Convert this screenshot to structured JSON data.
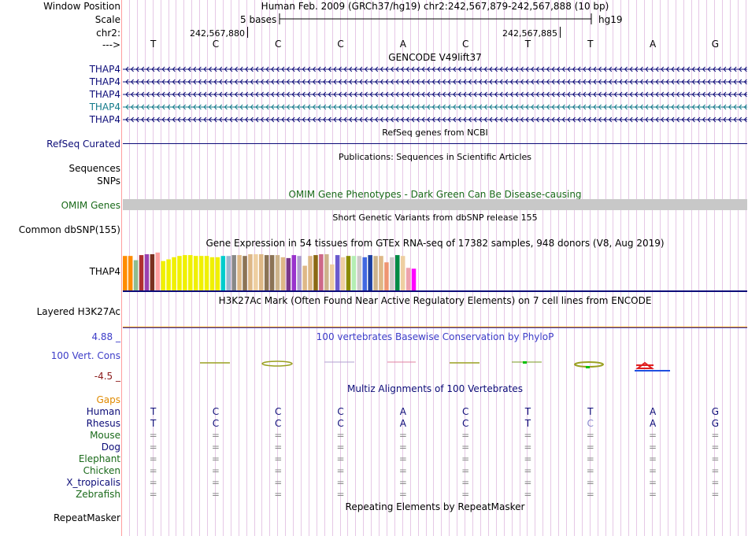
{
  "ruler": {
    "window_position_label": "Window Position",
    "scale_label": "Scale",
    "chr_label": "chr2:",
    "strand_label": "--->",
    "window_text": "Human Feb. 2009 (GRCh37/hg19)   chr2:242,567,879-242,567,888 (10 bp)",
    "scale_text": "5 bases",
    "assembly": "hg19",
    "pos_left": "242,567,880",
    "pos_right": "242,567,885",
    "bases": [
      "T",
      "C",
      "C",
      "C",
      "A",
      "C",
      "T",
      "T",
      "A",
      "G"
    ]
  },
  "gencode": {
    "title": "GENCODE V49lift37",
    "transcripts": [
      "THAP4",
      "THAP4",
      "THAP4",
      "THAP4",
      "THAP4"
    ],
    "colors": [
      "#0c0c78",
      "#0c0c78",
      "#0c0c78",
      "#127a8a",
      "#0c0c78"
    ]
  },
  "refseq": {
    "title": "RefSeq genes from NCBI",
    "label": "RefSeq Curated"
  },
  "publications": {
    "title": "Publications: Sequences in Scientific Articles"
  },
  "sequences": {
    "label": "Sequences"
  },
  "snps": {
    "label": "SNPs"
  },
  "omim": {
    "title": "OMIM Gene Phenotypes - Dark Green Can Be Disease-causing",
    "label": "OMIM Genes"
  },
  "dbsnp": {
    "title": "Short Genetic Variants from dbSNP release 155",
    "label": "Common dbSNP(155)"
  },
  "gtex": {
    "title": "Gene Expression in 54 tissues from GTEx RNA-seq of 17382 samples, 948 donors (V8, Aug 2019)",
    "gene": "THAP4",
    "levels": [
      0.83,
      0.83,
      0.73,
      0.85,
      0.87,
      0.87,
      0.91,
      0.71,
      0.75,
      0.8,
      0.83,
      0.85,
      0.85,
      0.83,
      0.83,
      0.83,
      0.8,
      0.8,
      0.83,
      0.83,
      0.85,
      0.85,
      0.83,
      0.87,
      0.87,
      0.87,
      0.85,
      0.85,
      0.85,
      0.8,
      0.78,
      0.85,
      0.83,
      0.6,
      0.83,
      0.85,
      0.87,
      0.87,
      0.63,
      0.85,
      0.8,
      0.83,
      0.83,
      0.83,
      0.8,
      0.85,
      0.83,
      0.83,
      0.68,
      0.8,
      0.85,
      0.83,
      0.55,
      0.53
    ],
    "colors": [
      "#ff8c00",
      "#ff8c00",
      "#8fbc8f",
      "#b03030",
      "#9a40b0",
      "#7a3020",
      "#ffa0a0",
      "#f0f000",
      "#f0f000",
      "#f0f000",
      "#f0f000",
      "#f0f000",
      "#f0f000",
      "#f0f000",
      "#f0f000",
      "#f0f000",
      "#f0f000",
      "#f0f000",
      "#00cccc",
      "#9fb6cd",
      "#888888",
      "#deb887",
      "#8b7355",
      "#deb887",
      "#eecfa1",
      "#deb887",
      "#8b7355",
      "#8b7355",
      "#cdb38b",
      "#deb887",
      "#7a378b",
      "#9932cc",
      "#b0a0d0",
      "#deb887",
      "#deb887",
      "#8b6914",
      "#cd6889",
      "#cdb38b",
      "#eecfa1",
      "#6a5acd",
      "#eecfa1",
      "#8b8b00",
      "#b4eeb4",
      "#cdc9c9",
      "#4169e1",
      "#1c3fa0",
      "#cdb38b",
      "#deb887",
      "#ee9572",
      "#cdc9c9",
      "#008b45",
      "#eecfa1",
      "#eea2ad",
      "#ff00ff"
    ]
  },
  "h3k27ac": {
    "title": "H3K27Ac Mark (Often Found Near Active Regulatory Elements) on 7 cell lines from ENCODE",
    "label": "Layered H3K27Ac"
  },
  "phylop": {
    "title": "100 vertebrates Basewise Conservation by PhyloP",
    "label": "100 Vert. Cons",
    "max": "4.88 _",
    "min": "-4.5 _"
  },
  "multiz": {
    "title": "Multiz Alignments of 100 Vertebrates",
    "gaps_label": "Gaps",
    "species": [
      {
        "name": "Human",
        "seq": [
          "T",
          "C",
          "C",
          "C",
          "A",
          "C",
          "T",
          "T",
          "A",
          "G"
        ],
        "color": "#0c0c78"
      },
      {
        "name": "Rhesus",
        "seq": [
          "T",
          "C",
          "C",
          "C",
          "A",
          "C",
          "T",
          "C",
          "A",
          "G"
        ],
        "color": "#0c0c78"
      },
      {
        "name": "Mouse",
        "seq": [
          "=",
          "=",
          "=",
          "=",
          "=",
          "=",
          "=",
          "=",
          "=",
          "="
        ],
        "color": "#1a6a1a"
      },
      {
        "name": "Dog",
        "seq": [
          "=",
          "=",
          "=",
          "=",
          "=",
          "=",
          "=",
          "=",
          "=",
          "="
        ],
        "color": "#0c0c78"
      },
      {
        "name": "Elephant",
        "seq": [
          "=",
          "=",
          "=",
          "=",
          "=",
          "=",
          "=",
          "=",
          "=",
          "="
        ],
        "color": "#1a6a1a"
      },
      {
        "name": "Chicken",
        "seq": [
          "=",
          "=",
          "=",
          "=",
          "=",
          "=",
          "=",
          "=",
          "=",
          "="
        ],
        "color": "#1a6a1a"
      },
      {
        "name": "X_tropicalis",
        "seq": [
          "=",
          "=",
          "=",
          "=",
          "=",
          "=",
          "=",
          "=",
          "=",
          "="
        ],
        "color": "#0c0c78"
      },
      {
        "name": "Zebrafish",
        "seq": [
          "=",
          "=",
          "=",
          "=",
          "=",
          "=",
          "=",
          "=",
          "=",
          "="
        ],
        "color": "#1a6a1a"
      }
    ]
  },
  "repeatmasker": {
    "title": "Repeating Elements by RepeatMasker",
    "label": "RepeatMasker"
  },
  "colors": {
    "navy": "#0c0c78",
    "omim_green": "#1a6a1a",
    "gaps_orange": "#e08a00",
    "phylop_blue": "#3c3cc8",
    "phylop_red": "#8b1a1a",
    "grid": "#e6c8e6"
  }
}
